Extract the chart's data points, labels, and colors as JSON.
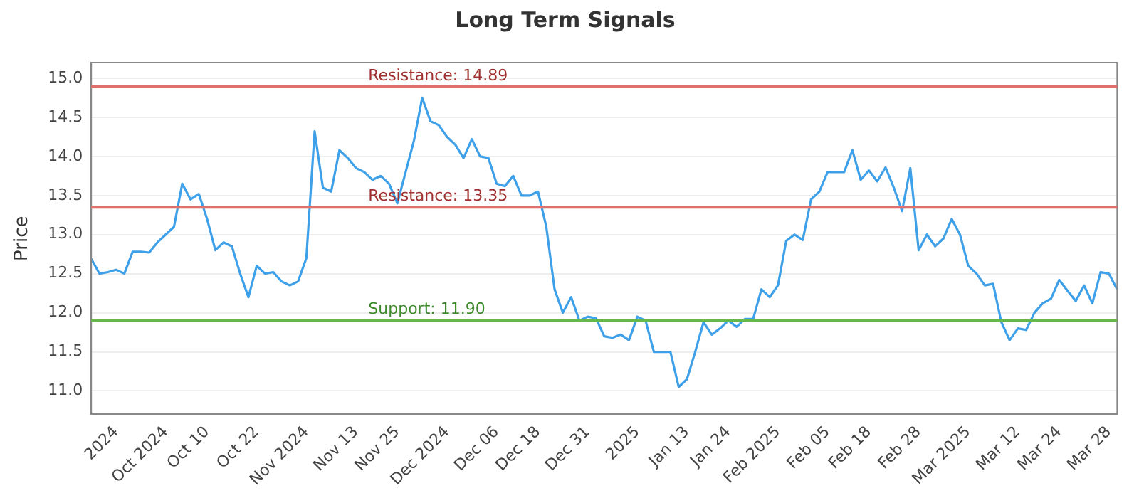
{
  "chart_data": {
    "type": "line",
    "title": "Long Term Signals",
    "ylabel": "Price",
    "categories": [
      null,
      null,
      null,
      "2024",
      null,
      null,
      null,
      null,
      null,
      "Oct 2024",
      null,
      null,
      null,
      null,
      "Oct 10",
      null,
      null,
      null,
      null,
      null,
      "Oct 22",
      null,
      null,
      null,
      null,
      null,
      "Nov 2024",
      null,
      null,
      null,
      null,
      null,
      "Nov 13",
      null,
      null,
      null,
      null,
      "Nov 25",
      null,
      null,
      null,
      null,
      null,
      "Dec 2024",
      null,
      null,
      null,
      null,
      null,
      "Dec 06",
      null,
      null,
      null,
      null,
      "Dec 18",
      null,
      null,
      null,
      null,
      null,
      "Dec 31",
      null,
      null,
      null,
      null,
      null,
      "2025",
      null,
      null,
      null,
      null,
      null,
      "Jan 13",
      null,
      null,
      null,
      null,
      "Jan 24",
      null,
      null,
      null,
      null,
      null,
      "Feb 2025",
      null,
      null,
      null,
      null,
      null,
      "Feb 05",
      null,
      null,
      null,
      null,
      "Feb 18",
      null,
      null,
      null,
      null,
      null,
      "Feb 28",
      null,
      null,
      null,
      null,
      null,
      "Mar 2025",
      null,
      null,
      null,
      null,
      null,
      "Mar 12",
      null,
      null,
      null,
      null,
      "Mar 24",
      null,
      null,
      null,
      null,
      null,
      "Mar 28",
      null
    ],
    "series": [
      {
        "color": "#3ea0e8",
        "values": [
          12.69,
          12.5,
          12.52,
          12.55,
          12.5,
          12.78,
          12.78,
          12.77,
          12.9,
          13.0,
          13.1,
          13.65,
          13.45,
          13.52,
          13.2,
          12.8,
          12.9,
          12.85,
          12.5,
          12.2,
          12.6,
          12.5,
          12.52,
          12.4,
          12.35,
          12.4,
          12.7,
          14.32,
          13.6,
          13.55,
          14.08,
          13.98,
          13.85,
          13.8,
          13.7,
          13.75,
          13.65,
          13.4,
          13.8,
          14.2,
          14.75,
          14.45,
          14.4,
          14.25,
          14.15,
          13.98,
          14.22,
          14.0,
          13.98,
          13.65,
          13.62,
          13.75,
          13.5,
          13.5,
          13.55,
          13.1,
          12.3,
          12.0,
          12.2,
          11.9,
          11.95,
          11.93,
          11.7,
          11.68,
          11.72,
          11.65,
          11.95,
          11.9,
          11.5,
          11.5,
          11.5,
          11.05,
          11.15,
          11.5,
          11.88,
          11.72,
          11.8,
          11.9,
          11.82,
          11.92,
          11.92,
          12.3,
          12.2,
          12.35,
          12.92,
          13.0,
          12.93,
          13.45,
          13.55,
          13.8,
          13.8,
          13.8,
          14.08,
          13.7,
          13.82,
          13.68,
          13.86,
          13.6,
          13.3,
          13.85,
          12.8,
          13.0,
          12.85,
          12.95,
          13.2,
          13.0,
          12.6,
          12.5,
          12.35,
          12.37,
          11.88,
          11.65,
          11.8,
          11.78,
          12.0,
          12.12,
          12.18,
          12.42,
          12.28,
          12.15,
          12.35,
          12.12,
          12.52,
          12.5,
          12.3
        ]
      }
    ],
    "ylim": [
      10.7,
      15.2
    ],
    "yticks": [
      {
        "value": 11,
        "label": "11.0"
      },
      {
        "value": 11.5,
        "label": "11.5"
      },
      {
        "value": 12,
        "label": "12.0"
      },
      {
        "value": 12.5,
        "label": "12.5"
      },
      {
        "value": 13,
        "label": "13.0"
      },
      {
        "value": 13.5,
        "label": "13.5"
      },
      {
        "value": 14,
        "label": "14.0"
      },
      {
        "value": 14.5,
        "label": "14.5"
      },
      {
        "value": 15,
        "label": "15.0"
      }
    ],
    "ref_lines": [
      {
        "axis": "y",
        "value": 14.89,
        "label": "Resistance: 14.89",
        "color": "#e07070"
      },
      {
        "axis": "y",
        "value": 13.35,
        "label": "Resistance: 13.35",
        "color": "#e07070"
      },
      {
        "axis": "y",
        "value": 11.9,
        "label": "Support: 11.90",
        "color": "#66b84a"
      }
    ],
    "grid": "y",
    "legend": false,
    "marker": "none",
    "line_style": "solid"
  }
}
